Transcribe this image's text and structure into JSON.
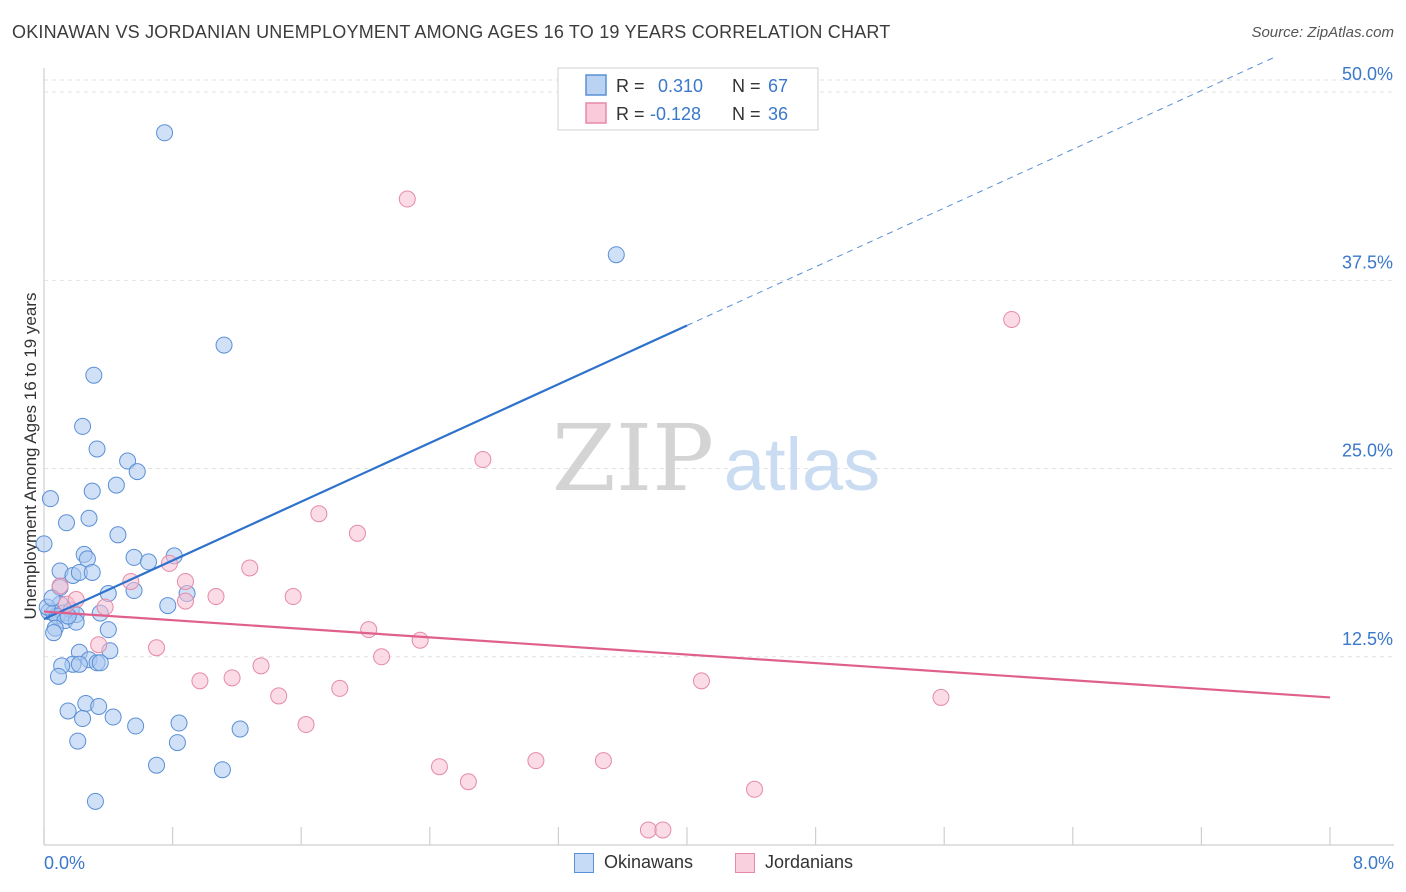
{
  "header": {
    "title": "OKINAWAN VS JORDANIAN UNEMPLOYMENT AMONG AGES 16 TO 19 YEARS CORRELATION CHART",
    "source": "Source: ZipAtlas.com"
  },
  "watermark": {
    "zip": "ZIP",
    "atlas": "atlas"
  },
  "colors": {
    "okinawan_fill": "#a9c8f0",
    "okinawan_stroke": "#5b8fd6",
    "okinawan_line": "#2f72cc",
    "jordanian_fill": "#f7bdd0",
    "jordanian_stroke": "#e58aa9",
    "jordanian_line": "#e0608d",
    "value_text": "#3a78c9",
    "grid": "#e2e2e2"
  },
  "chart_data": {
    "type": "scatter",
    "xlabel": "",
    "ylabel": "Unemployment Among Ages 16 to 19 years",
    "xlim": [
      0,
      8.0
    ],
    "ylim": [
      0,
      52
    ],
    "x_tick_labels": {
      "min": "0.0%",
      "max": "8.0%"
    },
    "y_ticks": [
      12.5,
      25.0,
      37.5,
      50.0
    ],
    "y_tick_labels": [
      "12.5%",
      "25.0%",
      "37.5%",
      "50.0%"
    ],
    "grid": "horizontal dashed",
    "legend_stats": [
      {
        "r_label": "R =",
        "r_value": "0.310",
        "n_label": "N =",
        "n_value": "67"
      },
      {
        "r_label": "R =",
        "r_value": "-0.128",
        "n_label": "N =",
        "n_value": "36"
      }
    ],
    "series": [
      {
        "name": "Okinawans",
        "trend": {
          "x": [
            0.0,
            4.0
          ],
          "y": [
            15.0,
            34.5
          ],
          "extension": {
            "x": [
              4.0,
              8.0
            ],
            "y": [
              34.5,
              54.0
            ]
          }
        },
        "points": [
          [
            0.75,
            47.3
          ],
          [
            3.56,
            39.2
          ],
          [
            1.12,
            33.2
          ],
          [
            0.31,
            31.2
          ],
          [
            0.24,
            27.8
          ],
          [
            0.33,
            26.3
          ],
          [
            0.52,
            25.5
          ],
          [
            0.58,
            24.8
          ],
          [
            0.45,
            23.9
          ],
          [
            0.3,
            23.5
          ],
          [
            0.04,
            23.0
          ],
          [
            0.14,
            21.4
          ],
          [
            0.28,
            21.7
          ],
          [
            0.46,
            20.6
          ],
          [
            0.0,
            20.0
          ],
          [
            0.25,
            19.3
          ],
          [
            0.27,
            19.0
          ],
          [
            0.56,
            19.1
          ],
          [
            0.81,
            19.2
          ],
          [
            0.65,
            18.8
          ],
          [
            0.1,
            18.2
          ],
          [
            0.18,
            17.9
          ],
          [
            0.22,
            18.1
          ],
          [
            0.3,
            18.1
          ],
          [
            0.1,
            17.1
          ],
          [
            0.4,
            16.7
          ],
          [
            0.56,
            16.9
          ],
          [
            0.89,
            16.7
          ],
          [
            0.77,
            15.9
          ],
          [
            0.1,
            16.0
          ],
          [
            0.12,
            15.4
          ],
          [
            0.17,
            15.6
          ],
          [
            0.03,
            15.5
          ],
          [
            0.06,
            15.4
          ],
          [
            0.08,
            15.2
          ],
          [
            0.2,
            15.3
          ],
          [
            0.35,
            15.4
          ],
          [
            0.13,
            14.9
          ],
          [
            0.2,
            14.8
          ],
          [
            0.07,
            14.4
          ],
          [
            0.06,
            14.1
          ],
          [
            0.22,
            12.8
          ],
          [
            0.41,
            12.9
          ],
          [
            0.28,
            12.3
          ],
          [
            0.18,
            12.0
          ],
          [
            0.11,
            11.9
          ],
          [
            0.22,
            12.0
          ],
          [
            0.33,
            12.1
          ],
          [
            0.35,
            12.1
          ],
          [
            0.09,
            11.2
          ],
          [
            0.26,
            9.4
          ],
          [
            0.34,
            9.2
          ],
          [
            0.15,
            8.9
          ],
          [
            0.24,
            8.4
          ],
          [
            0.43,
            8.5
          ],
          [
            0.57,
            7.9
          ],
          [
            0.84,
            8.1
          ],
          [
            1.22,
            7.7
          ],
          [
            0.21,
            6.9
          ],
          [
            0.83,
            6.8
          ],
          [
            0.7,
            5.3
          ],
          [
            1.11,
            5.0
          ],
          [
            0.32,
            2.9
          ],
          [
            0.02,
            15.8
          ],
          [
            0.15,
            15.2
          ],
          [
            0.05,
            16.4
          ],
          [
            0.4,
            14.3
          ]
        ]
      },
      {
        "name": "Jordanians",
        "trend": {
          "x": [
            0.0,
            8.0
          ],
          "y": [
            15.5,
            9.8
          ]
        },
        "points": [
          [
            2.26,
            42.9
          ],
          [
            6.02,
            34.9
          ],
          [
            2.73,
            25.6
          ],
          [
            1.71,
            22.0
          ],
          [
            1.95,
            20.7
          ],
          [
            1.28,
            18.4
          ],
          [
            0.88,
            17.5
          ],
          [
            0.78,
            18.7
          ],
          [
            0.54,
            17.5
          ],
          [
            0.1,
            17.2
          ],
          [
            0.14,
            16.0
          ],
          [
            0.38,
            15.8
          ],
          [
            0.2,
            16.3
          ],
          [
            1.07,
            16.5
          ],
          [
            1.55,
            16.5
          ],
          [
            0.88,
            16.2
          ],
          [
            2.02,
            14.3
          ],
          [
            2.34,
            13.6
          ],
          [
            0.34,
            13.3
          ],
          [
            0.7,
            13.1
          ],
          [
            2.1,
            12.5
          ],
          [
            1.35,
            11.9
          ],
          [
            1.17,
            11.1
          ],
          [
            0.97,
            10.9
          ],
          [
            4.09,
            10.9
          ],
          [
            1.84,
            10.4
          ],
          [
            1.46,
            9.9
          ],
          [
            5.58,
            9.8
          ],
          [
            1.63,
            8.0
          ],
          [
            2.46,
            5.2
          ],
          [
            3.06,
            5.6
          ],
          [
            3.48,
            5.6
          ],
          [
            2.64,
            4.2
          ],
          [
            4.42,
            3.7
          ],
          [
            3.76,
            1.0
          ],
          [
            3.85,
            1.0
          ]
        ]
      }
    ]
  }
}
